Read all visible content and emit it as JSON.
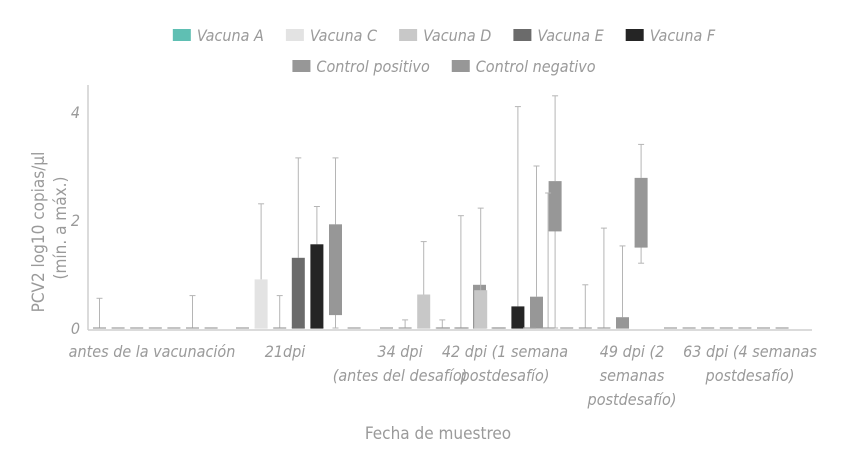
{
  "chart_data": {
    "type": "box",
    "ylabel_lines": [
      "PCV2 log10 copias/µl",
      "(mín. a máx.)"
    ],
    "xlabel": "Fecha de muestreo",
    "ylim": [
      0,
      4.6
    ],
    "yticks": [
      0,
      2,
      4
    ],
    "grid": false,
    "legend_position": "top",
    "series": [
      {
        "name": "Vacuna A",
        "color": "#5fbfb3"
      },
      {
        "name": "Vacuna C",
        "color": "#e3e3e3"
      },
      {
        "name": "Vacuna D",
        "color": "#c8c8c8"
      },
      {
        "name": "Vacuna E",
        "color": "#6b6b6b"
      },
      {
        "name": "Vacuna F",
        "color": "#252525"
      },
      {
        "name": "Control positivo",
        "color": "#979797"
      },
      {
        "name": "Control negativo",
        "color": "#979797"
      }
    ],
    "categories": [
      {
        "lines": [
          "antes de la vacunación"
        ]
      },
      {
        "lines": [
          "21dpi"
        ]
      },
      {
        "lines": [
          "34 dpi",
          "(antes del desafío)"
        ]
      },
      {
        "lines": [
          "42 dpi (1 semana",
          "postdesafío)"
        ]
      },
      {
        "lines": [
          "49 dpi (2",
          "semanas",
          "postdesafío)"
        ]
      },
      {
        "lines": [
          "63 dpi (4 semanas",
          "postdesafío)"
        ]
      }
    ],
    "boxes": [
      [
        [
          0,
          0,
          0,
          0,
          0.55
        ],
        [
          0,
          0,
          0,
          0,
          0
        ],
        [
          0,
          0,
          0,
          0,
          0
        ],
        [
          0,
          0,
          0,
          0,
          0
        ],
        [
          0,
          0,
          0,
          0,
          0
        ],
        [
          0,
          0,
          0,
          0,
          0.6
        ],
        [
          0,
          0,
          0,
          0,
          0
        ]
      ],
      [
        [
          0,
          0,
          0,
          0,
          0
        ],
        [
          0,
          0,
          0,
          0.9,
          2.3
        ],
        [
          0,
          0,
          0,
          0,
          0.6
        ],
        [
          0,
          0,
          0,
          1.3,
          3.15
        ],
        [
          0,
          0,
          0,
          1.55,
          2.25
        ],
        [
          0,
          0.25,
          0.25,
          1.92,
          3.15
        ],
        [
          0,
          0,
          0,
          0,
          0
        ]
      ],
      [
        [
          0,
          0,
          0,
          0,
          0
        ],
        [
          0,
          0,
          0,
          0,
          0.15
        ],
        [
          0,
          0,
          0,
          0.62,
          1.6
        ],
        [
          0,
          0,
          0,
          0,
          0.15
        ],
        [
          0,
          0,
          0,
          0,
          2.08
        ],
        [
          0,
          0,
          0,
          0.8,
          0.8
        ],
        [
          0,
          0,
          0,
          0,
          0
        ]
      ],
      [
        [
          0,
          0,
          0,
          0,
          0
        ],
        [
          0,
          0,
          0,
          0,
          0
        ],
        [
          0,
          0,
          0,
          0.7,
          2.22
        ],
        [
          0,
          0,
          0,
          0,
          0
        ],
        [
          0,
          0,
          0,
          0.4,
          4.1
        ],
        [
          0,
          0,
          0,
          0.58,
          3.0
        ],
        [
          0,
          1.8,
          1.8,
          2.72,
          4.3
        ]
      ],
      [
        [
          0,
          0,
          0,
          0,
          0
        ],
        [
          0,
          0,
          0,
          0,
          2.5
        ],
        [
          0,
          0,
          0,
          0,
          0
        ],
        [
          0,
          0,
          0,
          0,
          0.8
        ],
        [
          0,
          0,
          0,
          0,
          1.85
        ],
        [
          0,
          0,
          0,
          0.2,
          1.52
        ],
        [
          1.2,
          1.5,
          1.5,
          2.78,
          3.4
        ]
      ],
      [
        [
          0,
          0,
          0,
          0,
          0
        ],
        [
          0,
          0,
          0,
          0,
          0
        ],
        [
          0,
          0,
          0,
          0,
          0
        ],
        [
          0,
          0,
          0,
          0,
          0
        ],
        [
          0,
          0,
          0,
          0,
          0
        ],
        [
          0,
          0,
          0,
          0,
          0
        ],
        [
          0,
          0,
          0,
          0,
          0
        ]
      ]
    ]
  }
}
